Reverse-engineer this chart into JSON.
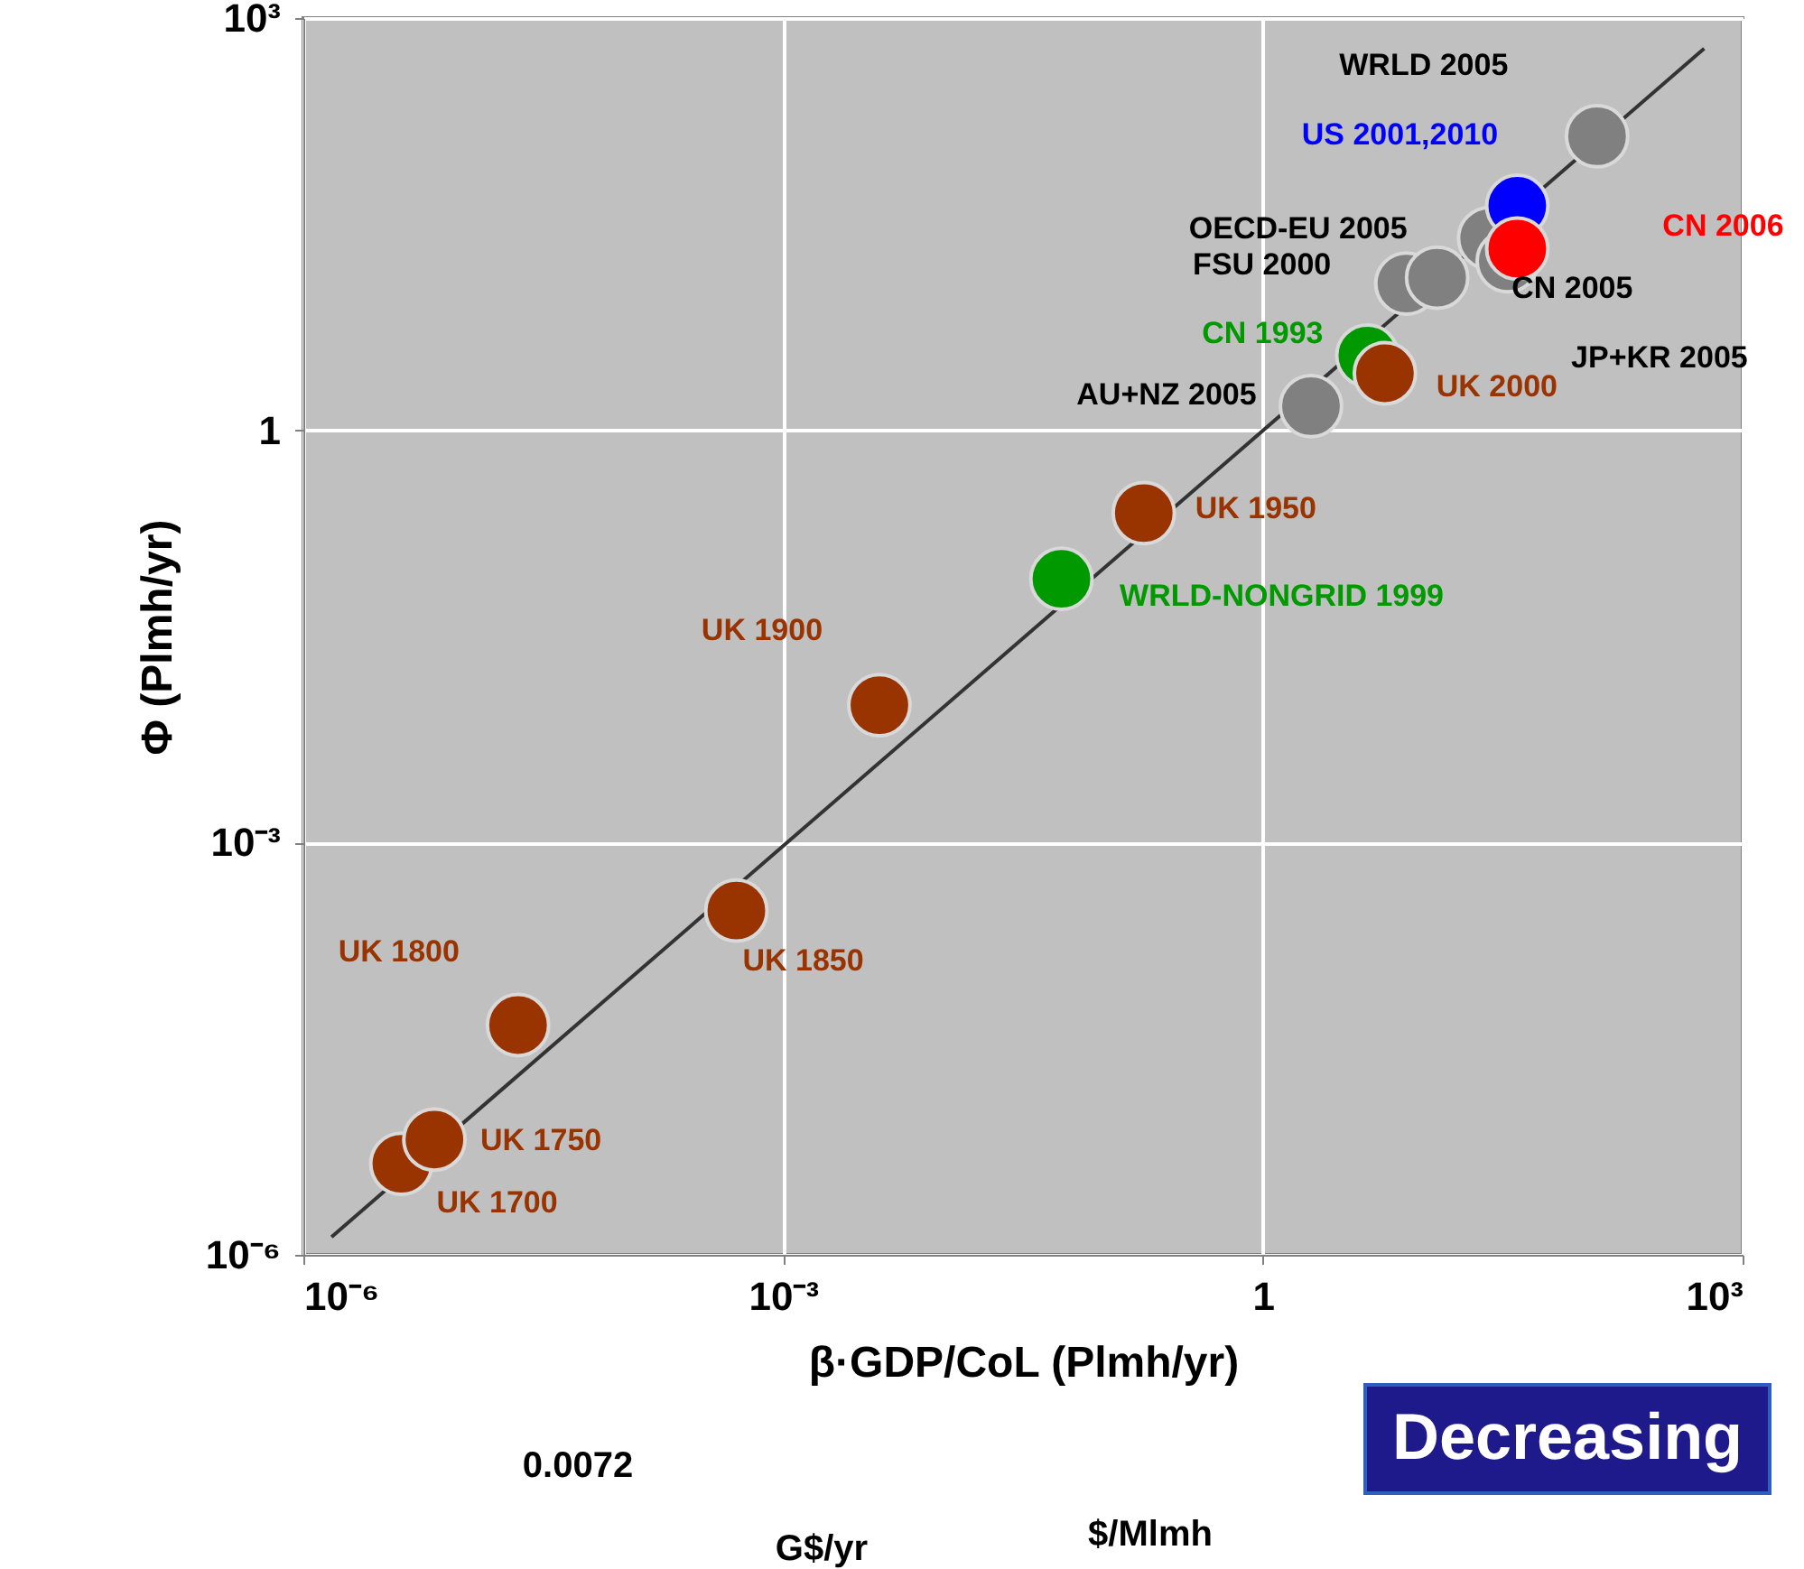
{
  "chart_data": {
    "type": "scatter",
    "xlabel": "β·GDP/CoL (Plmh/yr)",
    "ylabel": "Φ (Plmh/yr)",
    "log": "xy",
    "xlim": [
      1e-06,
      1000
    ],
    "ylim": [
      1e-06,
      1000
    ],
    "xticks": [
      {
        "value": 1e-06,
        "label": "10⁻⁶"
      },
      {
        "value": 0.001,
        "label": "10⁻³"
      },
      1,
      {
        "value": 1000,
        "label": "10³"
      }
    ],
    "yticks": [
      {
        "value": 1e-06,
        "label": "10⁻⁶"
      },
      {
        "value": 0.001,
        "label": "10⁻³"
      },
      1,
      {
        "value": 1000,
        "label": "10³"
      }
    ],
    "grid": true,
    "marker": "circle",
    "series": [
      {
        "type": "line",
        "marker": "none",
        "color": "#333333",
        "x": [
          1.5e-06,
          575
        ],
        "values": [
          1.35e-06,
          600
        ]
      },
      {
        "name": "UK 1700",
        "color": "#993300",
        "x": [
          4.1e-06
        ],
        "values": [
          4.6e-06
        ]
      },
      {
        "name": "UK 1750",
        "color": "#993300",
        "x": [
          6.6e-06
        ],
        "values": [
          6.9e-06
        ]
      },
      {
        "name": "UK 1800",
        "color": "#993300",
        "x": [
          2.2e-05
        ],
        "values": [
          4.7e-05
        ]
      },
      {
        "name": "UK 1850",
        "color": "#993300",
        "x": [
          0.00051
        ],
        "values": [
          0.00032
        ]
      },
      {
        "name": "UK 1900",
        "color": "#993300",
        "x": [
          0.004
        ],
        "values": [
          0.01
        ]
      },
      {
        "name": "UK 1950",
        "color": "#993300",
        "x": [
          0.18
        ],
        "values": [
          0.25
        ]
      },
      {
        "name": "WRLD-NONGRID 1999",
        "color": "#009900",
        "x": [
          0.055
        ],
        "values": [
          0.083
        ]
      },
      {
        "name": "AU+NZ 2005",
        "color": "#808080",
        "x": [
          2.0
        ],
        "values": [
          1.5
        ]
      },
      {
        "name": "CN 1993",
        "color": "#009900",
        "x": [
          4.5
        ],
        "values": [
          3.5
        ]
      },
      {
        "name": "UK 2000",
        "color": "#993300",
        "x": [
          5.8
        ],
        "values": [
          2.6
        ]
      },
      {
        "name": "FSU 2000",
        "color": "#808080",
        "x": [
          7.9
        ],
        "values": [
          11.7
        ]
      },
      {
        "name": "OECD-EU 2005",
        "color": "#808080",
        "x": [
          12.3
        ],
        "values": [
          12.9
        ]
      },
      {
        "name": "CN 2005",
        "color": "#808080",
        "x": [
          26
        ],
        "values": [
          25
        ]
      },
      {
        "name": "JP+KR 2005",
        "color": "#808080",
        "x": [
          34
        ],
        "values": [
          17
        ]
      },
      {
        "name": "WRLD 2005",
        "color": "#808080",
        "x": [
          123
        ],
        "values": [
          138
        ]
      },
      {
        "name": "US 2001,2010",
        "color": "#0000ff",
        "x": [
          39
        ],
        "values": [
          43
        ]
      },
      {
        "name": "CN 2006",
        "color": "#ff0000",
        "x": [
          39
        ],
        "values": [
          21
        ]
      }
    ],
    "annotations": [
      "0.0072",
      "G$/yr",
      "$/Mlmh",
      "Decreasing"
    ]
  }
}
